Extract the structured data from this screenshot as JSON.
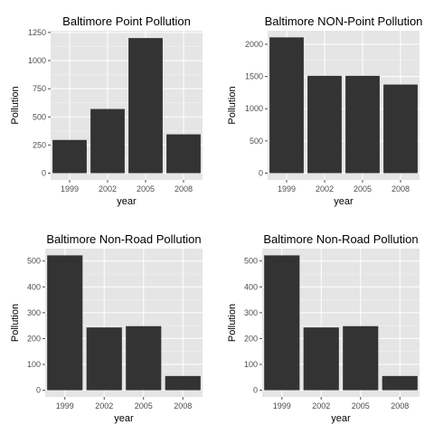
{
  "chart_data": [
    {
      "type": "bar",
      "title": "Baltimore Point Pollution",
      "xlabel": "year",
      "ylabel": "Pollution",
      "categories": [
        "1999",
        "2002",
        "2005",
        "2008"
      ],
      "values": [
        295,
        570,
        1200,
        345
      ],
      "ylim": [
        -60,
        1265
      ],
      "yticks": [
        0,
        250,
        500,
        750,
        1000,
        1250
      ],
      "grid": true,
      "bar_color": "#333333",
      "panel_color": "#e5e5e5"
    },
    {
      "type": "bar",
      "title": "Baltimore NON-Point Pollution",
      "xlabel": "year",
      "ylabel": "Pollution",
      "categories": [
        "1999",
        "2002",
        "2005",
        "2008"
      ],
      "values": [
        2107,
        1510,
        1510,
        1375
      ],
      "ylim": [
        -105,
        2210
      ],
      "yticks": [
        0,
        500,
        1000,
        1500,
        2000
      ],
      "grid": true,
      "bar_color": "#333333",
      "panel_color": "#e5e5e5"
    },
    {
      "type": "bar",
      "title": "Baltimore Non-Road Pollution",
      "xlabel": "year",
      "ylabel": "Pollution",
      "categories": [
        "1999",
        "2002",
        "2005",
        "2008"
      ],
      "values": [
        522,
        243,
        248,
        55
      ],
      "ylim": [
        -26,
        548
      ],
      "yticks": [
        0,
        100,
        200,
        300,
        400,
        500
      ],
      "grid": true,
      "bar_color": "#333333",
      "panel_color": "#e5e5e5"
    },
    {
      "type": "bar",
      "title": "Baltimore Non-Road Pollution",
      "xlabel": "year",
      "ylabel": "Pollution",
      "categories": [
        "1999",
        "2002",
        "2005",
        "2008"
      ],
      "values": [
        522,
        243,
        248,
        55
      ],
      "ylim": [
        -26,
        548
      ],
      "yticks": [
        0,
        100,
        200,
        300,
        400,
        500
      ],
      "grid": true,
      "bar_color": "#333333",
      "panel_color": "#e5e5e5"
    }
  ]
}
